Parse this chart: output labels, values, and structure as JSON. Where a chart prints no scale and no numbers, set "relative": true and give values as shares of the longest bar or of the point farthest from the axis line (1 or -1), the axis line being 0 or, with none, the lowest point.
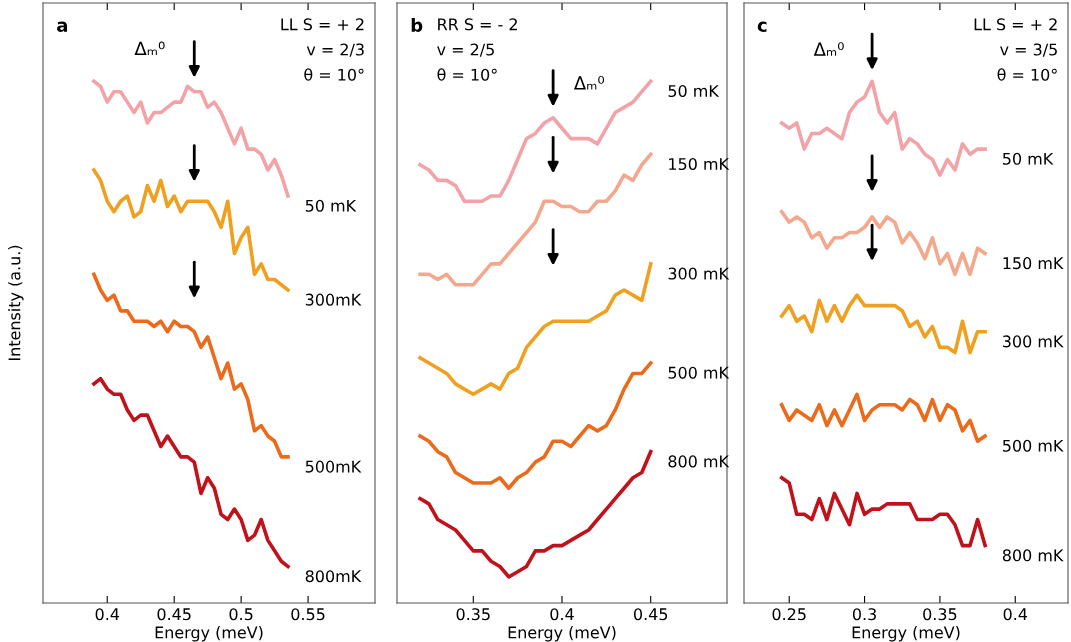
{
  "chart_data": [
    {
      "type": "line",
      "title": "a",
      "xlabel": "Energy (meV)",
      "ylabel": "Intensity (a.u.)",
      "relative": true,
      "legend": false,
      "xlim": [
        0.352,
        0.6
      ],
      "xticks": [
        0.4,
        0.45,
        0.5,
        0.55
      ],
      "x": [
        0.39,
        0.395,
        0.4,
        0.405,
        0.41,
        0.415,
        0.42,
        0.425,
        0.43,
        0.435,
        0.44,
        0.445,
        0.45,
        0.455,
        0.46,
        0.465,
        0.47,
        0.475,
        0.48,
        0.485,
        0.49,
        0.495,
        0.5,
        0.505,
        0.51,
        0.515,
        0.52,
        0.525,
        0.53,
        0.535
      ],
      "series": [
        {
          "name": "50 mK",
          "color": "#f2a3a8",
          "values": [
            1.0,
            0.99,
            0.96,
            0.98,
            0.98,
            0.96,
            0.94,
            0.96,
            0.92,
            0.94,
            0.94,
            0.95,
            0.96,
            0.96,
            0.99,
            0.98,
            0.98,
            0.95,
            0.96,
            0.94,
            0.91,
            0.88,
            0.91,
            0.87,
            0.87,
            0.86,
            0.83,
            0.85,
            0.82,
            0.78
          ]
        },
        {
          "name": "300mK",
          "color": "#f0a020",
          "values": [
            0.83,
            0.81,
            0.77,
            0.75,
            0.77,
            0.78,
            0.74,
            0.75,
            0.8,
            0.77,
            0.81,
            0.76,
            0.78,
            0.75,
            0.77,
            0.77,
            0.77,
            0.77,
            0.75,
            0.72,
            0.77,
            0.67,
            0.7,
            0.72,
            0.63,
            0.65,
            0.62,
            0.62,
            0.61,
            0.6
          ]
        },
        {
          "name": "500mK",
          "color": "#eb6a1c",
          "values": [
            0.63,
            0.6,
            0.58,
            0.59,
            0.56,
            0.56,
            0.54,
            0.54,
            0.54,
            0.53,
            0.54,
            0.52,
            0.54,
            0.53,
            0.53,
            0.52,
            0.49,
            0.51,
            0.47,
            0.43,
            0.46,
            0.41,
            0.42,
            0.39,
            0.33,
            0.34,
            0.32,
            0.31,
            0.28,
            0.28
          ]
        },
        {
          "name": "800mK",
          "color": "#c1121c",
          "values": [
            0.42,
            0.43,
            0.41,
            0.4,
            0.4,
            0.37,
            0.35,
            0.36,
            0.36,
            0.33,
            0.3,
            0.32,
            0.3,
            0.28,
            0.28,
            0.27,
            0.21,
            0.24,
            0.22,
            0.17,
            0.16,
            0.18,
            0.16,
            0.12,
            0.13,
            0.16,
            0.12,
            0.1,
            0.08,
            0.07
          ]
        }
      ],
      "annotations": [
        "LL S = + 2",
        "v = 2/3",
        "θ = 10°",
        {
          "text": "Δₘ⁰",
          "x": 0.465,
          "y": 0.98
        }
      ]
    },
    {
      "type": "line",
      "title": "b",
      "xlabel": "Energy (meV)",
      "relative": true,
      "legend": false,
      "xlim": [
        0.307,
        0.493
      ],
      "xticks": [
        0.35,
        0.4,
        0.45
      ],
      "x": [
        0.32,
        0.325,
        0.33,
        0.335,
        0.34,
        0.345,
        0.35,
        0.355,
        0.36,
        0.365,
        0.37,
        0.375,
        0.38,
        0.385,
        0.39,
        0.395,
        0.4,
        0.405,
        0.41,
        0.415,
        0.42,
        0.425,
        0.43,
        0.435,
        0.44,
        0.445,
        0.45
      ],
      "series": [
        {
          "name": "50 mK",
          "color": "#f2a3a8",
          "values": [
            0.84,
            0.83,
            0.81,
            0.81,
            0.8,
            0.77,
            0.77,
            0.77,
            0.78,
            0.78,
            0.81,
            0.85,
            0.89,
            0.9,
            0.92,
            0.93,
            0.91,
            0.89,
            0.89,
            0.89,
            0.88,
            0.91,
            0.94,
            0.95,
            0.96,
            0.98,
            1.0
          ]
        },
        {
          "name": "150 mK",
          "color": "#f3a88e",
          "values": [
            0.63,
            0.63,
            0.62,
            0.63,
            0.61,
            0.61,
            0.61,
            0.63,
            0.65,
            0.65,
            0.67,
            0.69,
            0.71,
            0.73,
            0.77,
            0.77,
            0.76,
            0.76,
            0.75,
            0.75,
            0.77,
            0.77,
            0.79,
            0.82,
            0.81,
            0.84,
            0.86
          ]
        },
        {
          "name": "300 mK",
          "color": "#f0a020",
          "values": [
            0.47,
            0.46,
            0.45,
            0.44,
            0.42,
            0.41,
            0.4,
            0.41,
            0.42,
            0.41,
            0.44,
            0.45,
            0.49,
            0.51,
            0.53,
            0.54,
            0.54,
            0.54,
            0.54,
            0.54,
            0.55,
            0.56,
            0.59,
            0.6,
            0.59,
            0.58,
            0.65
          ]
        },
        {
          "name": "500 mK",
          "color": "#eb6a1c",
          "values": [
            0.32,
            0.31,
            0.29,
            0.28,
            0.25,
            0.24,
            0.23,
            0.23,
            0.23,
            0.24,
            0.22,
            0.24,
            0.25,
            0.27,
            0.28,
            0.31,
            0.31,
            0.3,
            0.32,
            0.34,
            0.33,
            0.34,
            0.37,
            0.41,
            0.44,
            0.44,
            0.46
          ]
        },
        {
          "name": "800 mK",
          "color": "#c1121c",
          "values": [
            0.2,
            0.19,
            0.16,
            0.15,
            0.14,
            0.12,
            0.1,
            0.1,
            0.08,
            0.07,
            0.05,
            0.06,
            0.07,
            0.1,
            0.1,
            0.11,
            0.11,
            0.12,
            0.13,
            0.14,
            0.16,
            0.18,
            0.2,
            0.22,
            0.24,
            0.25,
            0.29
          ]
        }
      ],
      "annotations": [
        "RR S = - 2",
        "v = 2/5",
        "θ = 10°",
        {
          "text": "Δₘ⁰",
          "x": 0.395,
          "y": 0.93
        }
      ]
    },
    {
      "type": "line",
      "title": "c",
      "xlabel": "Energy (meV)",
      "relative": true,
      "legend": false,
      "xlim": [
        0.22,
        0.435
      ],
      "xticks": [
        0.25,
        0.3,
        0.35,
        0.4
      ],
      "x": [
        0.245,
        0.25,
        0.255,
        0.26,
        0.265,
        0.27,
        0.275,
        0.28,
        0.285,
        0.29,
        0.295,
        0.3,
        0.305,
        0.31,
        0.315,
        0.32,
        0.325,
        0.33,
        0.335,
        0.34,
        0.345,
        0.35,
        0.355,
        0.36,
        0.365,
        0.37,
        0.375,
        0.38
      ],
      "series": [
        {
          "name": "50 mK",
          "color": "#f2a3a8",
          "values": [
            0.92,
            0.91,
            0.92,
            0.87,
            0.9,
            0.9,
            0.91,
            0.9,
            0.89,
            0.94,
            0.96,
            0.97,
            1.0,
            0.94,
            0.92,
            0.94,
            0.87,
            0.89,
            0.88,
            0.86,
            0.85,
            0.82,
            0.85,
            0.83,
            0.88,
            0.86,
            0.87,
            0.87
          ]
        },
        {
          "name": "150 mK",
          "color": "#f3a88e",
          "values": [
            0.75,
            0.73,
            0.74,
            0.73,
            0.7,
            0.71,
            0.68,
            0.7,
            0.7,
            0.71,
            0.71,
            0.72,
            0.74,
            0.72,
            0.74,
            0.73,
            0.69,
            0.71,
            0.69,
            0.66,
            0.7,
            0.65,
            0.67,
            0.63,
            0.67,
            0.63,
            0.68,
            0.67
          ]
        },
        {
          "name": "300 mK",
          "color": "#f0a020",
          "values": [
            0.55,
            0.57,
            0.54,
            0.55,
            0.52,
            0.58,
            0.54,
            0.57,
            0.54,
            0.57,
            0.59,
            0.57,
            0.57,
            0.57,
            0.57,
            0.57,
            0.56,
            0.53,
            0.54,
            0.51,
            0.53,
            0.49,
            0.49,
            0.48,
            0.54,
            0.48,
            0.52,
            0.52
          ]
        },
        {
          "name": "500 mK",
          "color": "#eb6a1c",
          "values": [
            0.38,
            0.35,
            0.37,
            0.36,
            0.35,
            0.38,
            0.34,
            0.37,
            0.34,
            0.37,
            0.4,
            0.35,
            0.37,
            0.38,
            0.38,
            0.38,
            0.37,
            0.39,
            0.38,
            0.35,
            0.39,
            0.35,
            0.38,
            0.37,
            0.33,
            0.35,
            0.31,
            0.32
          ]
        },
        {
          "name": "800 mK",
          "color": "#c1121c",
          "values": [
            0.24,
            0.23,
            0.17,
            0.17,
            0.16,
            0.2,
            0.16,
            0.21,
            0.18,
            0.15,
            0.21,
            0.17,
            0.18,
            0.18,
            0.19,
            0.19,
            0.19,
            0.19,
            0.16,
            0.16,
            0.16,
            0.17,
            0.17,
            0.15,
            0.11,
            0.11,
            0.16,
            0.11
          ]
        }
      ],
      "annotations": [
        "LL S = + 2",
        "v = 3/5",
        "θ = 10°",
        {
          "text": "Δₘ⁰",
          "x": 0.305,
          "y": 1.0
        }
      ]
    }
  ]
}
